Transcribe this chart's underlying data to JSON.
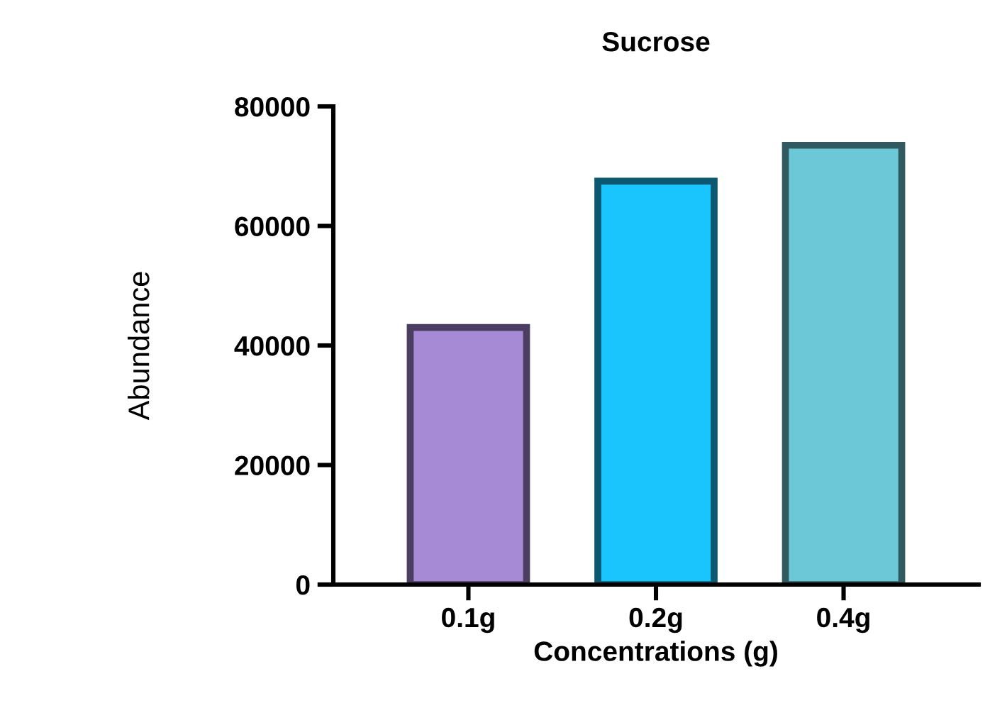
{
  "chart_data": {
    "type": "bar",
    "title": "Sucrose",
    "xlabel": "Concentrations (g)",
    "ylabel": "Abundance",
    "categories": [
      "0.1g",
      "0.2g",
      "0.4g"
    ],
    "values": [
      43000,
      67500,
      73500
    ],
    "colors": [
      "#a68ad6",
      "#1ac4fc",
      "#6cc8d6"
    ],
    "ylim": [
      0,
      80000
    ],
    "yticks": [
      0,
      20000,
      40000,
      60000,
      80000
    ],
    "grid": false
  }
}
